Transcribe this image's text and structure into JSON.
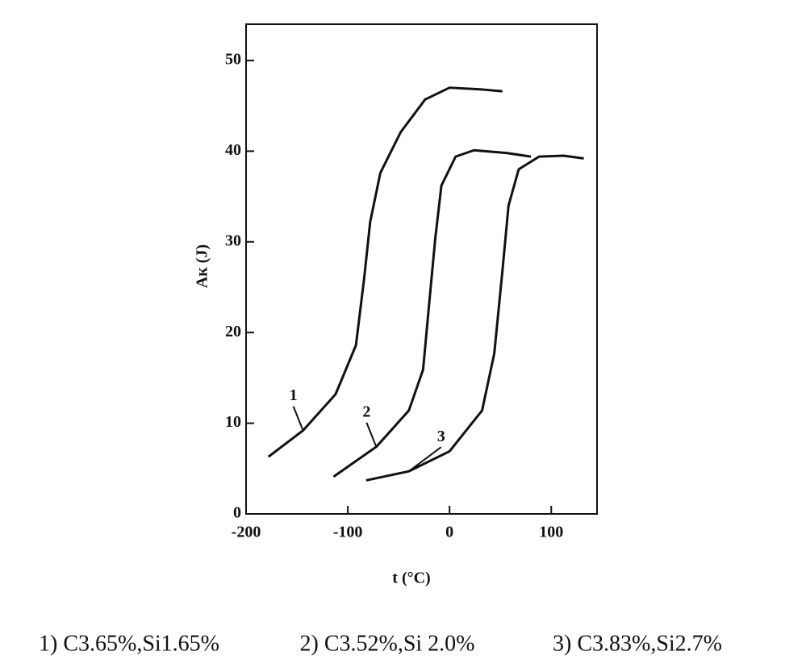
{
  "chart_data": {
    "type": "line",
    "x_label": "t (°C)",
    "y_label": "Aк (J)",
    "xlim": [
      -200,
      145
    ],
    "ylim": [
      0,
      54
    ],
    "xticks": [
      -200,
      -100,
      0,
      100
    ],
    "yticks": [
      0,
      10,
      20,
      30,
      40,
      50
    ],
    "grid": false,
    "legend": "bottom",
    "curve_labels": [
      "1",
      "2",
      "3"
    ],
    "series": [
      {
        "name": "1) C3.65%,Si1.65%",
        "color": "#111111",
        "x": [
          -178,
          -144,
          -112,
          -92,
          -84,
          -78,
          -68,
          -48,
          -24,
          0,
          32,
          52
        ],
        "values": [
          6.3,
          9.2,
          13.2,
          18.6,
          25.9,
          32.2,
          37.6,
          42.1,
          45.7,
          47.0,
          46.8,
          46.6
        ]
      },
      {
        "name": "2) C3.52%,Si 2.0%",
        "color": "#111111",
        "x": [
          -114,
          -72,
          -40,
          -26,
          -20,
          -14,
          -8,
          6,
          24,
          56,
          80
        ],
        "values": [
          4.1,
          7.4,
          11.4,
          15.9,
          23.2,
          30.4,
          36.2,
          39.4,
          40.1,
          39.8,
          39.4
        ]
      },
      {
        "name": "3) C3.83%,Si2.7%",
        "color": "#111111",
        "x": [
          -82,
          -40,
          0,
          32,
          44,
          52,
          58,
          68,
          88,
          112,
          132
        ],
        "values": [
          3.7,
          4.7,
          6.9,
          11.4,
          17.7,
          26.8,
          34.0,
          38.0,
          39.4,
          39.5,
          39.2
        ]
      }
    ]
  }
}
